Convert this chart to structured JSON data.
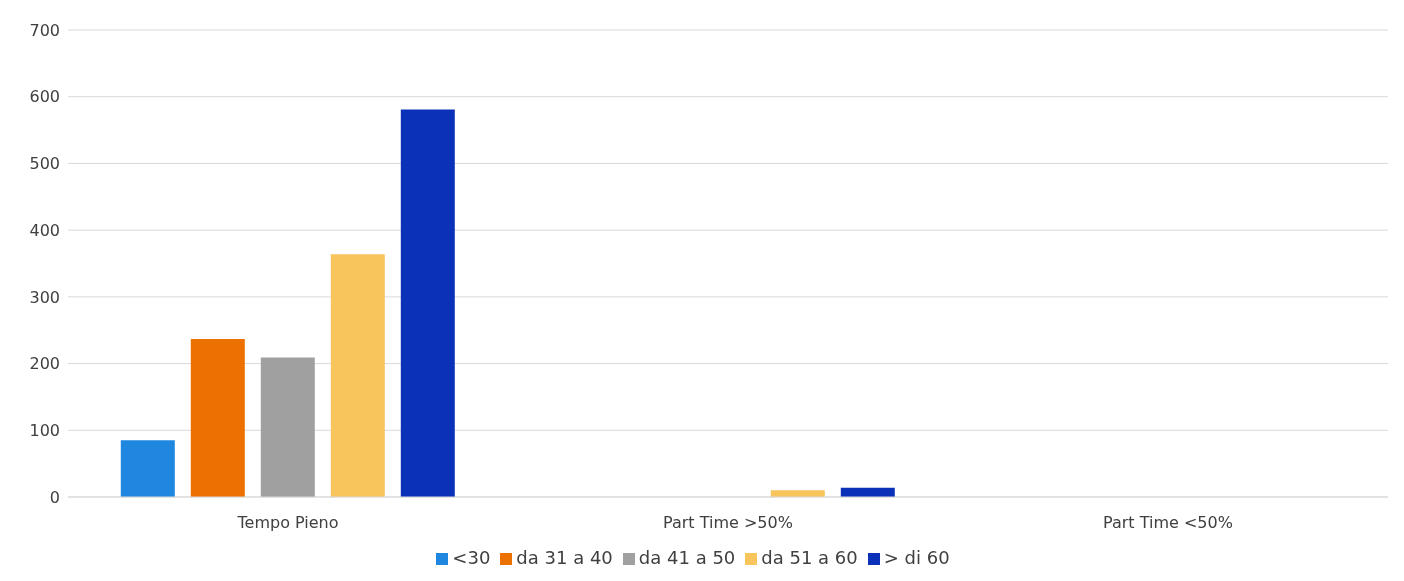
{
  "chart_data": {
    "type": "bar",
    "categories": [
      "Tempo Pieno",
      "Part Time >50%",
      "Part Time <50%"
    ],
    "series": [
      {
        "name": "<30",
        "color": "#1f87e0",
        "values": [
          85,
          0,
          0
        ]
      },
      {
        "name": "da 31 a 40",
        "color": "#ed7100",
        "values": [
          237,
          0,
          0
        ]
      },
      {
        "name": "da 41 a 50",
        "color": "#a0a0a0",
        "values": [
          209,
          0,
          0
        ]
      },
      {
        "name": "da 51 a 60",
        "color": "#f7c55c",
        "values": [
          364,
          10,
          0
        ]
      },
      {
        "name": "> di 60",
        "color": "#0a31b8",
        "values": [
          581,
          14,
          0
        ]
      }
    ],
    "ylim": [
      0,
      700
    ],
    "yticks": [
      0,
      100,
      200,
      300,
      400,
      500,
      600,
      700
    ],
    "grid": "y",
    "legend": "bottom"
  }
}
